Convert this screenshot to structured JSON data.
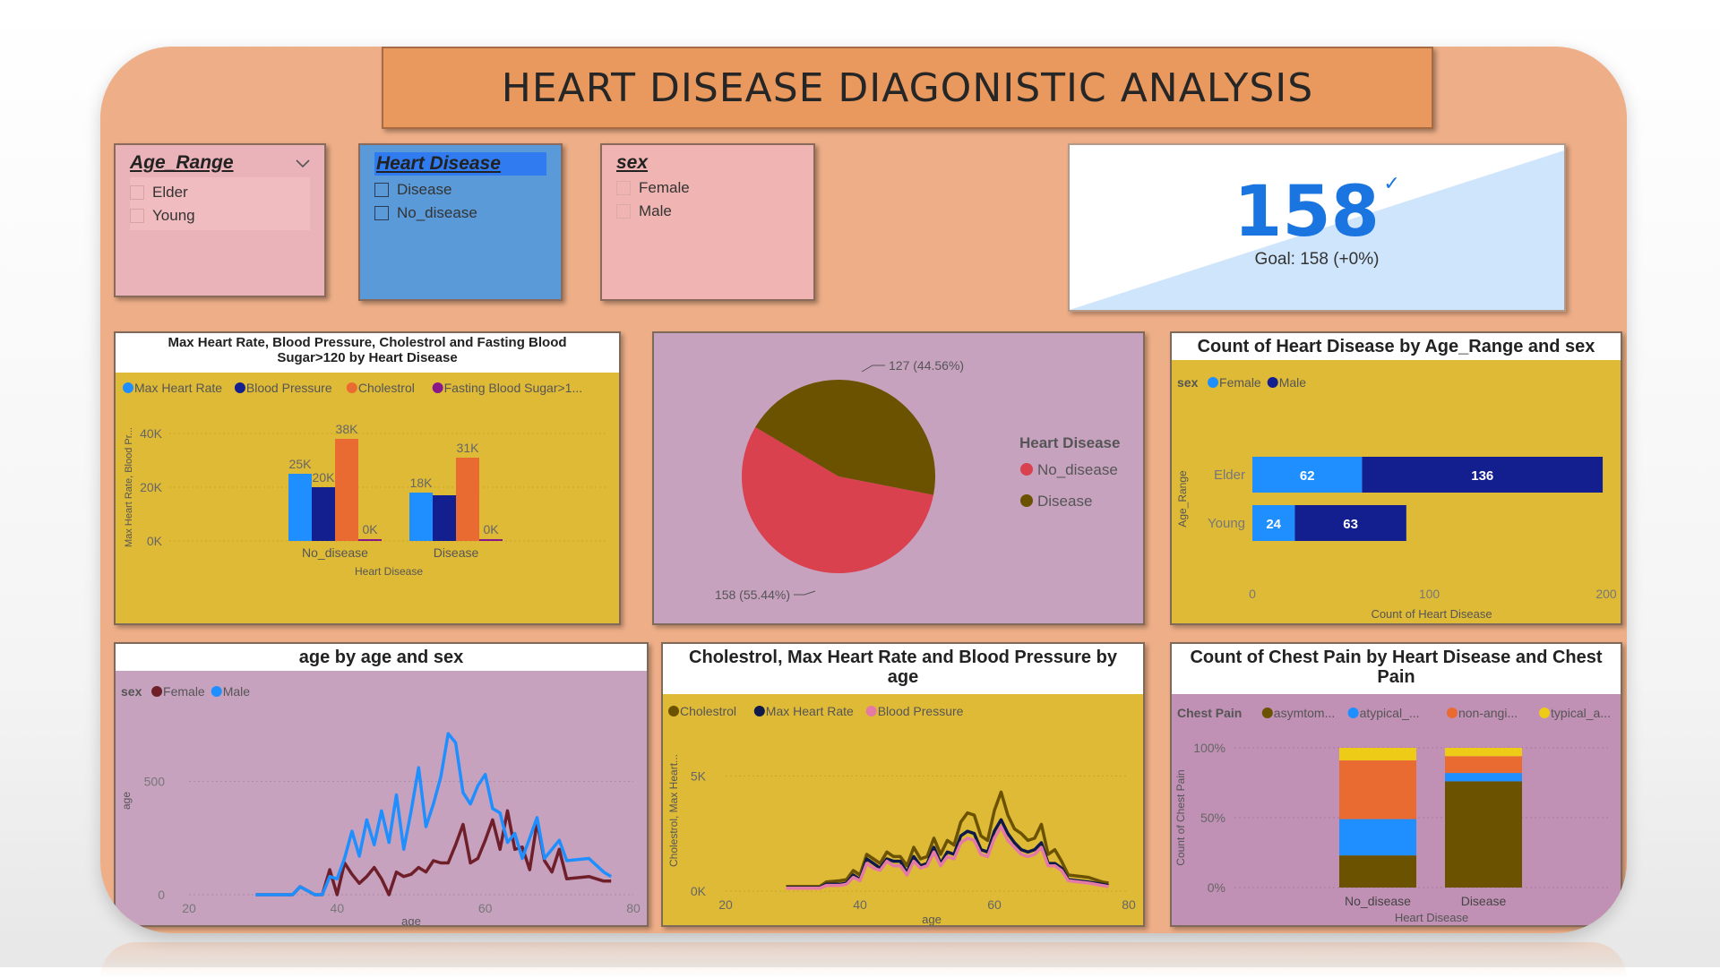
{
  "title": "HEART DISEASE DIAGONISTIC ANALYSIS",
  "colors": {
    "background": "#eeaf88",
    "title_bg": "#e9995e",
    "yellow_panel": "#dfba37",
    "purple_panel": "#c7a2bf",
    "blue": "#1f8fff",
    "dark_blue": "#141f8f",
    "orange": "#e96b32",
    "purple": "#8a178a",
    "red": "#d9414e",
    "olive": "#6b5200",
    "maroon": "#6e1f2a",
    "pink": "#e57aa4",
    "navy": "#0f1a4a",
    "yellow": "#eecb17"
  },
  "slicers": {
    "age_range": {
      "title": "Age_Range",
      "icon": "chevron-down-icon",
      "items": [
        "Elder",
        "Young"
      ]
    },
    "heart_disease": {
      "title": "Heart Disease",
      "items": [
        "Disease",
        "No_disease"
      ]
    },
    "sex": {
      "title": "sex",
      "items": [
        "Female",
        "Male"
      ]
    }
  },
  "kpi": {
    "value": "158",
    "goal": "Goal: 158 (+0%)",
    "icon": "check-icon"
  },
  "charts": {
    "grouped_bar": {
      "title": "Max Heart Rate, Blood Pressure, Cholestrol and Fasting Blood Sugar>120 by Heart Disease",
      "legend": [
        "Max Heart Rate",
        "Blood Pressure",
        "Cholestrol",
        "Fasting Blood Sugar>1..."
      ],
      "ylabel": "Max Heart Rate, Blood Pr...",
      "xlabel": "Heart Disease",
      "yticks": [
        "0K",
        "20K",
        "40K"
      ],
      "categories": [
        "No_disease",
        "Disease"
      ],
      "data_labels": [
        [
          "25K",
          "20K",
          "38K",
          "0K"
        ],
        [
          "18K",
          "",
          "31K",
          "0K"
        ]
      ]
    },
    "pie": {
      "legend_title": "Heart Disease",
      "legend": [
        "No_disease",
        "Disease"
      ],
      "labels": [
        "158 (55.44%)",
        "127 (44.56%)"
      ]
    },
    "hbar": {
      "title": "Count of Heart Disease by Age_Range and sex",
      "legend_title": "sex",
      "legend": [
        "Female",
        "Male"
      ],
      "ylabel": "Age_Range",
      "xlabel": "Count of Heart Disease",
      "categories": [
        "Elder",
        "Young"
      ],
      "xticks": [
        "0",
        "100",
        "200"
      ],
      "data_labels": [
        [
          "62",
          "136"
        ],
        [
          "24",
          "63"
        ]
      ]
    },
    "age_line": {
      "title": "age by age and sex",
      "legend_title": "sex",
      "legend": [
        "Female",
        "Male"
      ],
      "ylabel": "age",
      "xlabel": "age",
      "xticks": [
        "20",
        "40",
        "60",
        "80"
      ],
      "yticks": [
        "0",
        "500"
      ]
    },
    "multi_line": {
      "title": "Cholestrol, Max Heart Rate and Blood Pressure by age",
      "legend": [
        "Cholestrol",
        "Max Heart Rate",
        "Blood Pressure"
      ],
      "ylabel": "Cholestrol, Max Heart...",
      "xlabel": "age",
      "xticks": [
        "20",
        "40",
        "60",
        "80"
      ],
      "yticks": [
        "0K",
        "5K"
      ]
    },
    "stacked": {
      "title": "Count of Chest Pain by Heart Disease and Chest Pain",
      "legend_title": "Chest Pain",
      "legend": [
        "asymtom...",
        "atypical_...",
        "non-angi...",
        "typical_a..."
      ],
      "ylabel": "Count of Chest Pain",
      "xlabel": "Heart Disease",
      "categories": [
        "No_disease",
        "Disease"
      ],
      "yticks": [
        "0%",
        "50%",
        "100%"
      ]
    }
  },
  "chart_data": [
    {
      "type": "bar",
      "categories": [
        "No_disease",
        "Disease"
      ],
      "series": [
        {
          "name": "Max Heart Rate",
          "values": [
            25000,
            18000
          ]
        },
        {
          "name": "Blood Pressure",
          "values": [
            20000,
            17000
          ]
        },
        {
          "name": "Cholestrol",
          "values": [
            38000,
            31000
          ]
        },
        {
          "name": "Fasting Blood Sugar>1...",
          "values": [
            0,
            0
          ]
        }
      ],
      "ylim": [
        0,
        40000
      ]
    },
    {
      "type": "pie",
      "categories": [
        "No_disease",
        "Disease"
      ],
      "values": [
        158,
        127
      ]
    },
    {
      "type": "bar",
      "orientation": "horizontal",
      "stacked": true,
      "categories": [
        "Elder",
        "Young"
      ],
      "series": [
        {
          "name": "Female",
          "values": [
            62,
            24
          ]
        },
        {
          "name": "Male",
          "values": [
            136,
            63
          ]
        }
      ],
      "xlim": [
        0,
        200
      ]
    },
    {
      "type": "line",
      "x": [
        29,
        32,
        34,
        35,
        37,
        38,
        39,
        40,
        41,
        42,
        43,
        44,
        45,
        46,
        47,
        48,
        49,
        50,
        51,
        52,
        53,
        54,
        55,
        56,
        57,
        58,
        59,
        60,
        61,
        62,
        63,
        64,
        65,
        66,
        67,
        68,
        69,
        70,
        71,
        74,
        76,
        77
      ],
      "series": [
        {
          "name": "Female",
          "values": [
            0,
            0,
            0,
            35,
            0,
            0,
            110,
            0,
            140,
            90,
            50,
            80,
            120,
            70,
            0,
            100,
            80,
            90,
            120,
            100,
            150,
            140,
            140,
            220,
            310,
            140,
            160,
            240,
            330,
            200,
            370,
            200,
            210,
            110,
            320,
            150,
            100,
            200,
            70,
            80,
            60,
            60
          ]
        },
        {
          "name": "Male",
          "values": [
            0,
            0,
            0,
            35,
            0,
            0,
            80,
            70,
            160,
            280,
            170,
            330,
            220,
            370,
            230,
            440,
            200,
            370,
            560,
            300,
            400,
            520,
            710,
            670,
            450,
            400,
            480,
            530,
            380,
            360,
            230,
            270,
            160,
            250,
            340,
            160,
            200,
            240,
            150,
            160,
            100,
            80
          ]
        }
      ],
      "xlim": [
        20,
        80
      ],
      "ylim": [
        0,
        750
      ]
    },
    {
      "type": "line",
      "x": [
        29,
        32,
        34,
        35,
        37,
        38,
        39,
        40,
        41,
        42,
        43,
        44,
        45,
        46,
        47,
        48,
        49,
        50,
        51,
        52,
        53,
        54,
        55,
        56,
        57,
        58,
        59,
        60,
        61,
        62,
        63,
        64,
        65,
        66,
        67,
        68,
        69,
        70,
        71,
        74,
        76,
        77
      ],
      "series": [
        {
          "name": "Cholestrol",
          "values": [
            200,
            200,
            200,
            400,
            450,
            500,
            900,
            700,
            1600,
            1400,
            1200,
            1700,
            1500,
            1500,
            1100,
            1900,
            1400,
            1500,
            2300,
            1600,
            2200,
            2000,
            3000,
            3400,
            3300,
            2400,
            2200,
            3500,
            4300,
            3300,
            2700,
            2500,
            2200,
            2300,
            2900,
            1600,
            1800,
            1300,
            700,
            600,
            400,
            350
          ]
        },
        {
          "name": "Max Heart Rate",
          "values": [
            150,
            150,
            150,
            300,
            300,
            350,
            700,
            500,
            1400,
            1200,
            1000,
            1400,
            1300,
            1300,
            800,
            1500,
            1100,
            1200,
            1900,
            1200,
            1700,
            1600,
            2400,
            2600,
            2500,
            1800,
            1700,
            2600,
            3100,
            2500,
            2100,
            1800,
            1700,
            1800,
            2100,
            1200,
            1200,
            1000,
            500,
            400,
            300,
            250
          ]
        },
        {
          "name": "Blood Pressure",
          "values": [
            130,
            130,
            130,
            250,
            250,
            300,
            600,
            450,
            1200,
            1000,
            900,
            1300,
            1100,
            1100,
            700,
            1300,
            1000,
            1100,
            1700,
            1100,
            1500,
            1400,
            2100,
            2300,
            2200,
            1600,
            1500,
            2300,
            2800,
            2200,
            1900,
            1600,
            1500,
            1600,
            1900,
            1100,
            1100,
            900,
            450,
            350,
            250,
            200
          ]
        }
      ],
      "xlim": [
        20,
        80
      ],
      "ylim": [
        0,
        7000
      ]
    },
    {
      "type": "bar",
      "stacked": true,
      "percent": true,
      "categories": [
        "No_disease",
        "Disease"
      ],
      "series": [
        {
          "name": "asymtom...",
          "values": [
            23,
            76
          ]
        },
        {
          "name": "atypical_...",
          "values": [
            26,
            6
          ]
        },
        {
          "name": "non-angi...",
          "values": [
            42,
            12
          ]
        },
        {
          "name": "typical_a...",
          "values": [
            9,
            6
          ]
        }
      ],
      "ylim": [
        0,
        100
      ]
    }
  ]
}
